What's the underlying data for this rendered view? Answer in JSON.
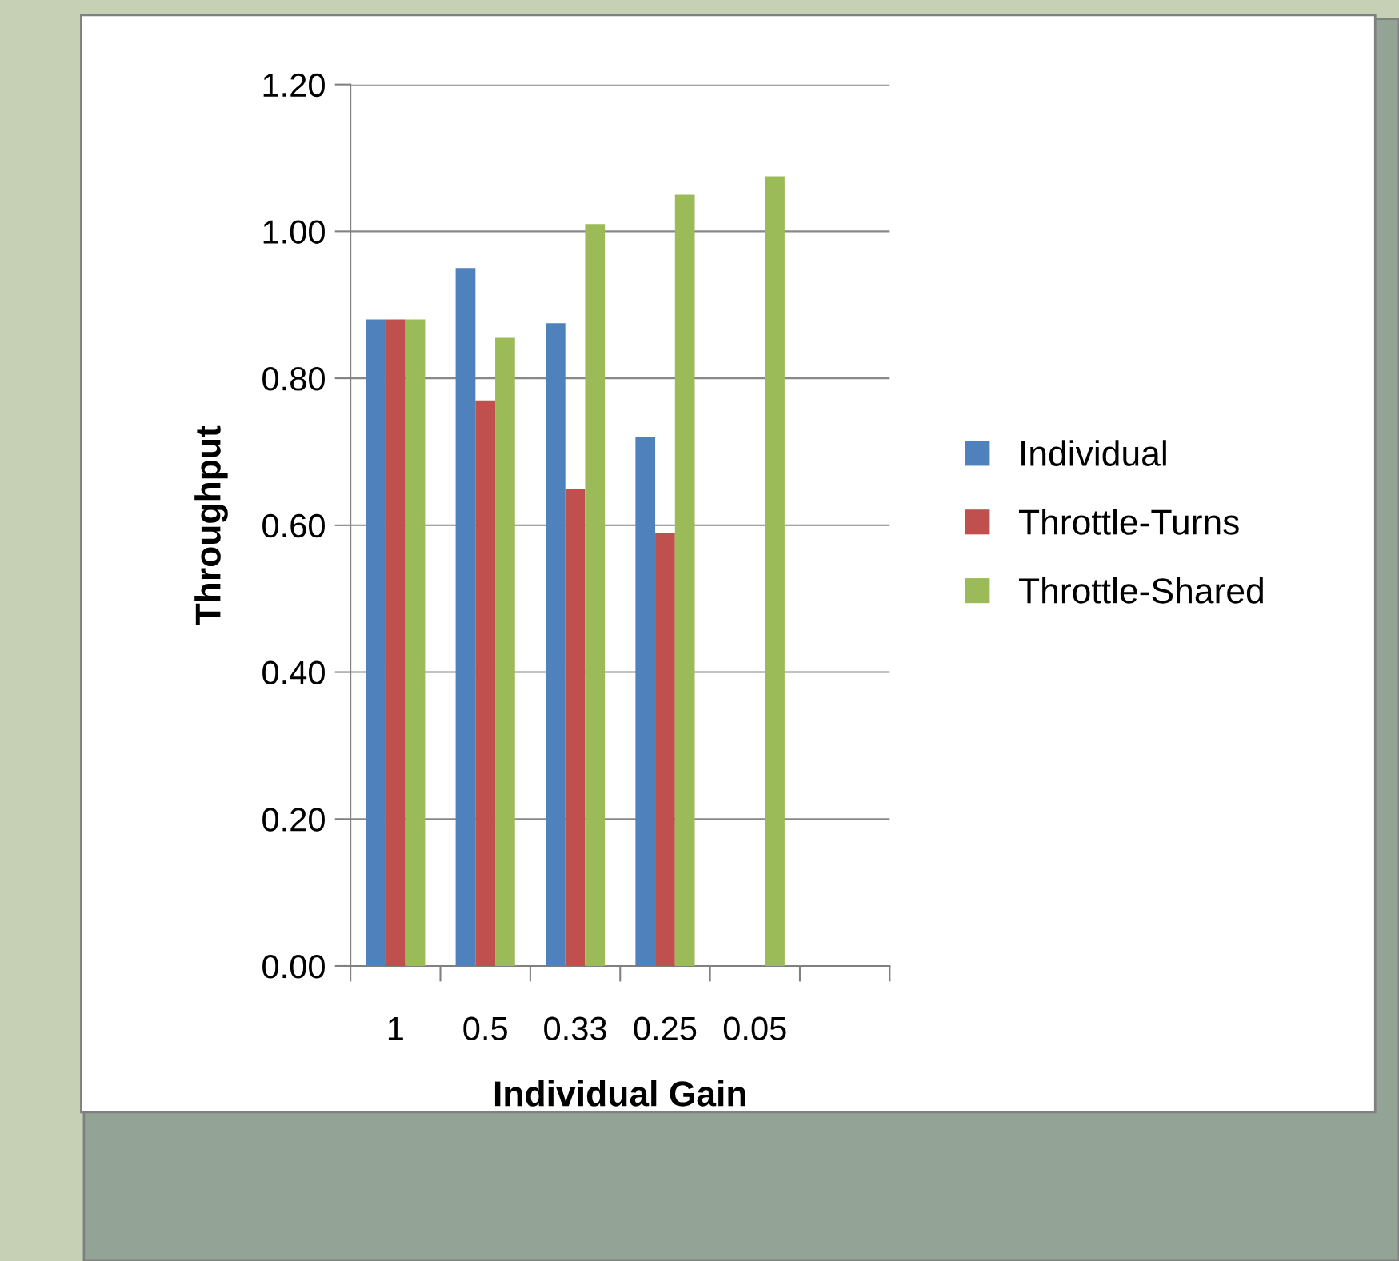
{
  "chart_data": {
    "type": "bar",
    "xlabel": "Individual Gain",
    "ylabel": "Throughput",
    "categories": [
      "1",
      "0.5",
      "0.33",
      "0.25",
      "0.05",
      null
    ],
    "series": [
      {
        "name": "Individual",
        "color": "#4f81bd",
        "values": [
          0.88,
          0.95,
          0.875,
          0.72,
          null,
          null
        ]
      },
      {
        "name": "Throttle-Turns",
        "color": "#c0504d",
        "values": [
          0.88,
          0.77,
          0.65,
          0.59,
          null,
          null
        ]
      },
      {
        "name": "Throttle-Shared",
        "color": "#9bbb59",
        "values": [
          0.88,
          0.855,
          1.01,
          1.05,
          1.075,
          null
        ]
      }
    ],
    "ylim": [
      0,
      1.2
    ],
    "yticks": [
      {
        "value": 0,
        "label": "0.00"
      },
      {
        "value": 0.2,
        "label": "0.20"
      },
      {
        "value": 0.4,
        "label": "0.40"
      },
      {
        "value": 0.6,
        "label": "0.60"
      },
      {
        "value": 0.8,
        "label": "0.80"
      },
      {
        "value": 1.0,
        "label": "1.00"
      },
      {
        "value": 1.2,
        "label": "1.20"
      }
    ],
    "grid": "y",
    "legend": "right"
  }
}
